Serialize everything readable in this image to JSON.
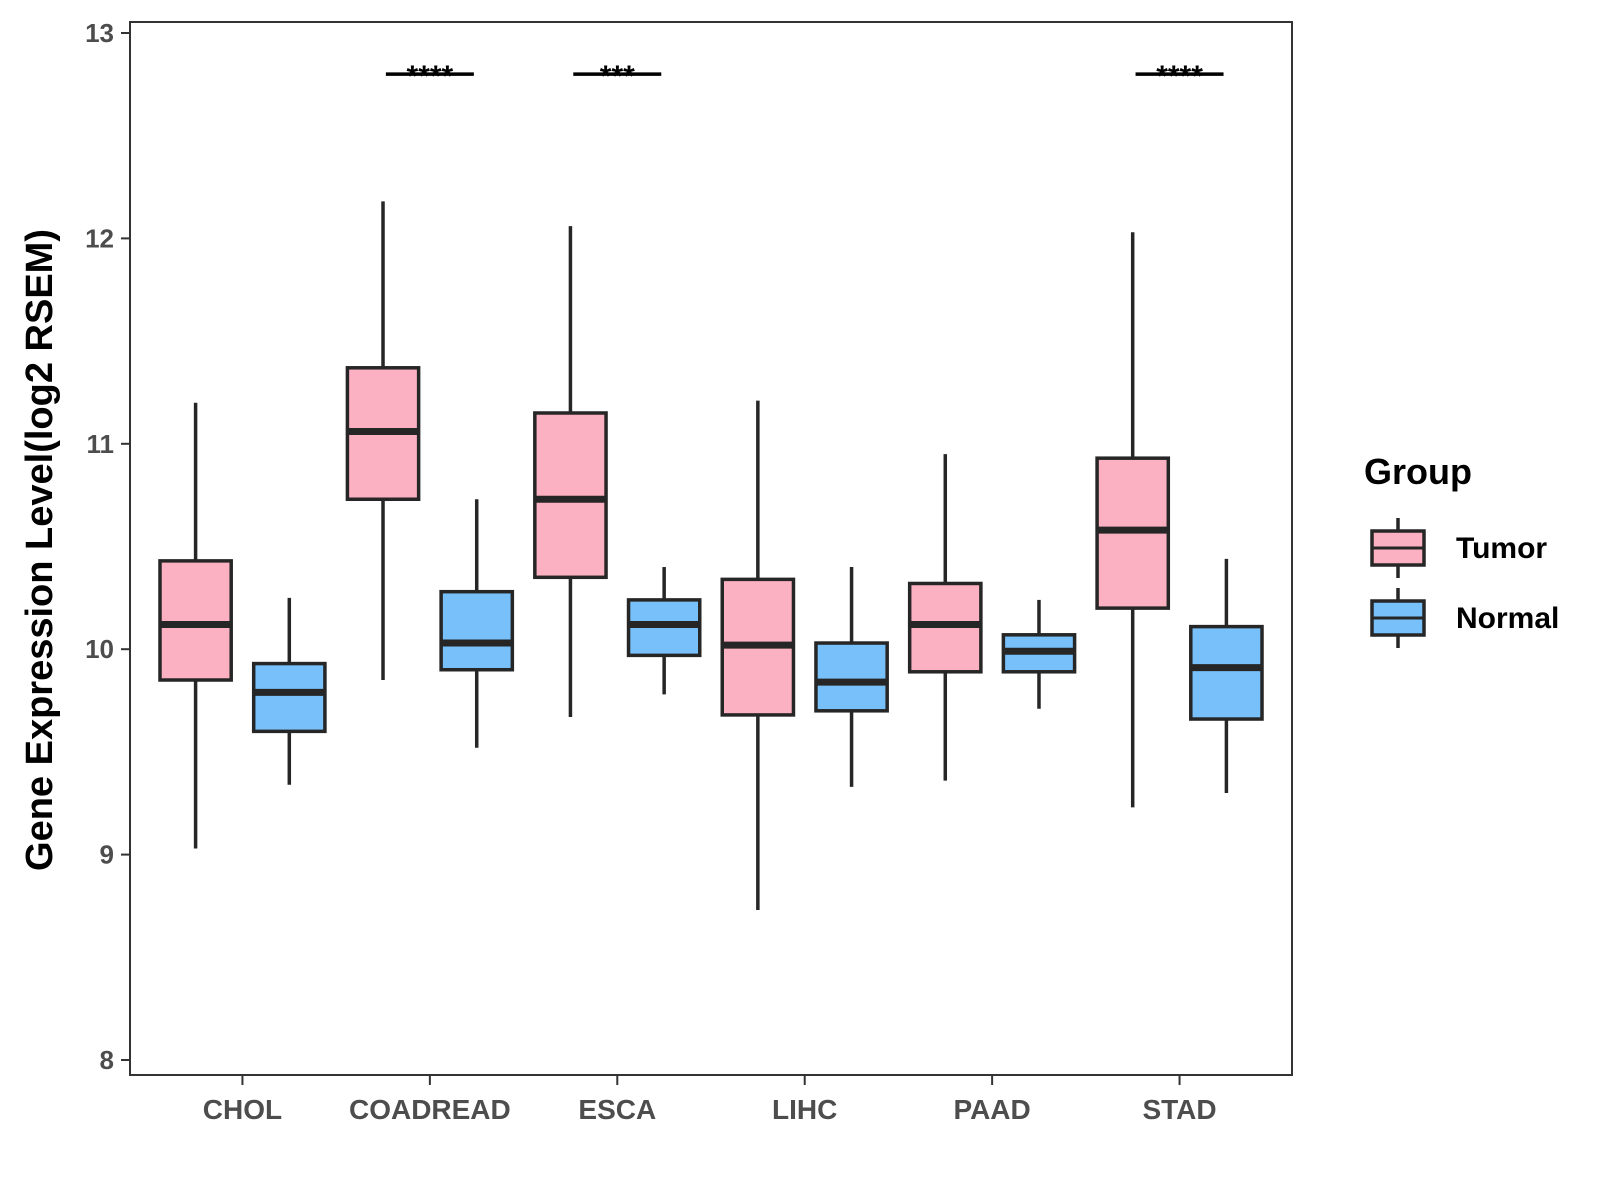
{
  "chart_data": {
    "type": "boxplot",
    "title": "",
    "xlabel": "",
    "ylabel": "Gene Expression Level(log2 RSEM)",
    "ylim": [
      8,
      13
    ],
    "yticks": [
      8,
      9,
      10,
      11,
      12,
      13
    ],
    "grid": false,
    "categories": [
      "CHOL",
      "COADREAD",
      "ESCA",
      "LIHC",
      "PAAD",
      "STAD"
    ],
    "legend": {
      "title": "Group",
      "position": "right",
      "entries": [
        "Tumor",
        "Normal"
      ]
    },
    "series": [
      {
        "name": "Tumor",
        "color": "#FBB1C2",
        "boxes": [
          {
            "min": 9.03,
            "q1": 9.85,
            "median": 10.12,
            "q3": 10.43,
            "max": 11.2
          },
          {
            "min": 9.85,
            "q1": 10.73,
            "median": 11.06,
            "q3": 11.37,
            "max": 12.18
          },
          {
            "min": 9.67,
            "q1": 10.35,
            "median": 10.73,
            "q3": 11.15,
            "max": 12.06
          },
          {
            "min": 8.73,
            "q1": 9.68,
            "median": 10.02,
            "q3": 10.34,
            "max": 11.21
          },
          {
            "min": 9.36,
            "q1": 9.89,
            "median": 10.12,
            "q3": 10.32,
            "max": 10.95
          },
          {
            "min": 9.23,
            "q1": 10.2,
            "median": 10.58,
            "q3": 10.93,
            "max": 12.03
          }
        ]
      },
      {
        "name": "Normal",
        "color": "#77C0FA",
        "boxes": [
          {
            "min": 9.34,
            "q1": 9.6,
            "median": 9.79,
            "q3": 9.93,
            "max": 10.25
          },
          {
            "min": 9.52,
            "q1": 9.9,
            "median": 10.03,
            "q3": 10.28,
            "max": 10.73
          },
          {
            "min": 9.78,
            "q1": 9.97,
            "median": 10.12,
            "q3": 10.24,
            "max": 10.4
          },
          {
            "min": 9.33,
            "q1": 9.7,
            "median": 9.84,
            "q3": 10.03,
            "max": 10.4
          },
          {
            "min": 9.71,
            "q1": 9.89,
            "median": 9.99,
            "q3": 10.07,
            "max": 10.24
          },
          {
            "min": 9.3,
            "q1": 9.66,
            "median": 9.91,
            "q3": 10.11,
            "max": 10.44
          }
        ]
      }
    ],
    "annotations": [
      {
        "category": "COADREAD",
        "label": "****",
        "y": 12.8
      },
      {
        "category": "ESCA",
        "label": "***",
        "y": 12.8
      },
      {
        "category": "STAD",
        "label": "****",
        "y": 12.8
      }
    ]
  }
}
